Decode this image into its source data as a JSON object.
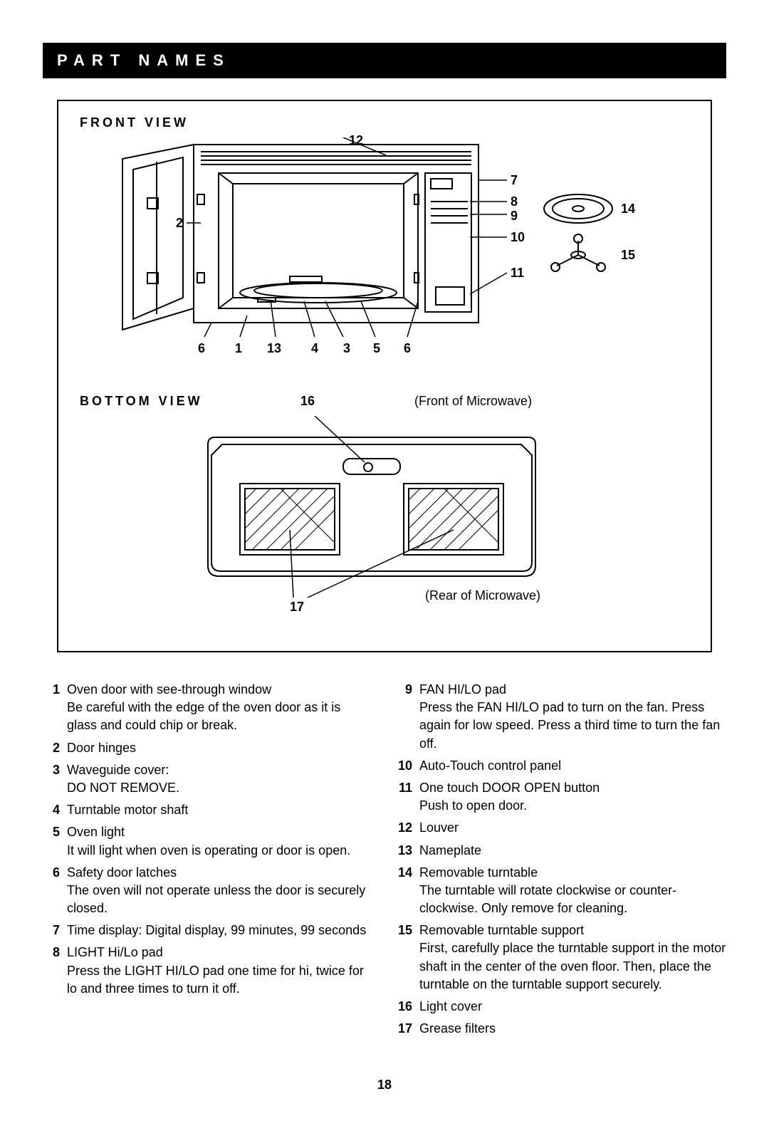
{
  "header": "PART NAMES",
  "front_view_title": "FRONT VIEW",
  "bottom_view_title": "BOTTOM VIEW",
  "front_of_microwave": "(Front of Microwave)",
  "rear_of_microwave": "(Rear of Microwave)",
  "callouts": {
    "n1": "1",
    "n2": "2",
    "n3": "3",
    "n4": "4",
    "n5": "5",
    "n6": "6",
    "n7": "7",
    "n8": "8",
    "n9": "9",
    "n10": "10",
    "n11": "11",
    "n12": "12",
    "n13": "13",
    "n14": "14",
    "n15": "15",
    "n16": "16",
    "n17": "17",
    "n6b": "6"
  },
  "parts": [
    {
      "num": "1",
      "label": "Oven door with see-through window",
      "detail": "Be careful with the edge of the oven door as it is glass and could chip or break."
    },
    {
      "num": "2",
      "label": "Door hinges",
      "detail": ""
    },
    {
      "num": "3",
      "label": "Waveguide cover:",
      "detail": "DO NOT REMOVE."
    },
    {
      "num": "4",
      "label": "Turntable motor shaft",
      "detail": ""
    },
    {
      "num": "5",
      "label": "Oven light",
      "detail": "It will light when oven is operating or door is open."
    },
    {
      "num": "6",
      "label": "Safety door latches",
      "detail": "The oven will not operate unless the door is securely closed."
    },
    {
      "num": "7",
      "label": "Time display: Digital display, 99 minutes, 99 seconds",
      "detail": ""
    },
    {
      "num": "8",
      "label": "LIGHT Hi/Lo pad",
      "detail": "Press the LIGHT HI/LO pad one time for hi, twice for lo and three times to turn it off."
    },
    {
      "num": "9",
      "label": "FAN HI/LO pad",
      "detail": "Press the FAN HI/LO pad to turn on the fan. Press again for low speed. Press a third time to turn the fan off."
    },
    {
      "num": "10",
      "label": "Auto-Touch control panel",
      "detail": ""
    },
    {
      "num": "11",
      "label": "One touch DOOR OPEN button",
      "detail": "Push to open door."
    },
    {
      "num": "12",
      "label": "Louver",
      "detail": ""
    },
    {
      "num": "13",
      "label": "Nameplate",
      "detail": ""
    },
    {
      "num": "14",
      "label": "Removable turntable",
      "detail": "The turntable will rotate clockwise or counter-clockwise. Only remove for cleaning."
    },
    {
      "num": "15",
      "label": "Removable turntable support",
      "detail": "First, carefully place the turntable support in the motor shaft in the  center of the oven floor. Then, place the turntable on the turntable support securely."
    },
    {
      "num": "16",
      "label": "Light cover",
      "detail": ""
    },
    {
      "num": "17",
      "label": "Grease filters",
      "detail": ""
    }
  ],
  "page_number": "18",
  "left_column_count": 8
}
